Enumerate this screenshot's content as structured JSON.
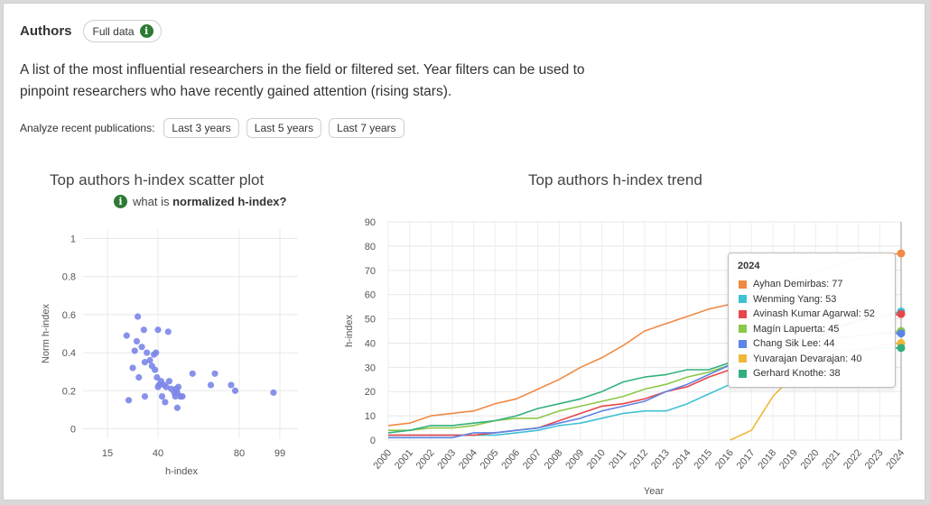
{
  "header": {
    "title": "Authors",
    "full_data_label": "Full data"
  },
  "description": "A list of the most influential researchers in the field or filtered set. Year filters can be used to pinpoint researchers who have recently gained attention (rising stars).",
  "filters": {
    "label": "Analyze recent publications:",
    "options": [
      "Last 3 years",
      "Last 5 years",
      "Last 7 years"
    ]
  },
  "scatter_hint": {
    "prefix": "what is ",
    "bold": "normalized h-index?"
  },
  "chart_data": [
    {
      "type": "scatter",
      "title": "Top authors h-index scatter plot",
      "xlabel": "h-index",
      "ylabel": "Norm h-index",
      "x_ticks": [
        15,
        40,
        80,
        99
      ],
      "y_ticks": [
        0,
        0.2,
        0.4,
        0.6,
        0.8,
        1
      ],
      "ylim": [
        -0.05,
        1.05
      ],
      "color": "#7b86e8",
      "points": [
        [
          24.5,
          0.49
        ],
        [
          25.5,
          0.15
        ],
        [
          27.5,
          0.32
        ],
        [
          28.5,
          0.41
        ],
        [
          29.5,
          0.46
        ],
        [
          30,
          0.59
        ],
        [
          30.5,
          0.27
        ],
        [
          32,
          0.43
        ],
        [
          33,
          0.52
        ],
        [
          33.5,
          0.35
        ],
        [
          33.5,
          0.17
        ],
        [
          34.5,
          0.4
        ],
        [
          36,
          0.36
        ],
        [
          37,
          0.33
        ],
        [
          38,
          0.39
        ],
        [
          38.5,
          0.31
        ],
        [
          39,
          0.4
        ],
        [
          39.5,
          0.27
        ],
        [
          40,
          0.52
        ],
        [
          40,
          0.22
        ],
        [
          40.5,
          0.23
        ],
        [
          41.5,
          0.25
        ],
        [
          42,
          0.17
        ],
        [
          43,
          0.23
        ],
        [
          43.5,
          0.14
        ],
        [
          44,
          0.22
        ],
        [
          45,
          0.51
        ],
        [
          45.5,
          0.25
        ],
        [
          46.5,
          0.21
        ],
        [
          48,
          0.19
        ],
        [
          48.5,
          0.17
        ],
        [
          49,
          0.21
        ],
        [
          49.5,
          0.19
        ],
        [
          49.5,
          0.11
        ],
        [
          50,
          0.22
        ],
        [
          51,
          0.17
        ],
        [
          52,
          0.17
        ],
        [
          57,
          0.29
        ],
        [
          66,
          0.23
        ],
        [
          68,
          0.29
        ],
        [
          76,
          0.23
        ],
        [
          78,
          0.2
        ],
        [
          96,
          0.19
        ]
      ]
    },
    {
      "type": "line",
      "title": "Top authors h-index trend",
      "xlabel": "Year",
      "ylabel": "h-index",
      "ylim": [
        0,
        90
      ],
      "y_ticks": [
        0,
        10,
        20,
        30,
        40,
        50,
        60,
        70,
        80,
        90
      ],
      "x": [
        "2000",
        "2001",
        "2002",
        "2003",
        "2004",
        "2005",
        "2006",
        "2007",
        "2008",
        "2009",
        "2010",
        "2011",
        "2012",
        "2013",
        "2014",
        "2015",
        "2016",
        "2017",
        "2018",
        "2019",
        "2020",
        "2021",
        "2022",
        "2023",
        "2024"
      ],
      "series": [
        {
          "name": "Ayhan Demirbas",
          "color": "#f08a44",
          "values": [
            6,
            7,
            10,
            11,
            12,
            15,
            17,
            21,
            25,
            30,
            34,
            39,
            45,
            48,
            51,
            54,
            56,
            60,
            63,
            66,
            69,
            72,
            75,
            76,
            77
          ]
        },
        {
          "name": "Wenming Yang",
          "color": "#3fc1d6",
          "values": [
            2,
            2,
            2,
            2,
            2,
            2,
            3,
            4,
            6,
            7,
            9,
            11,
            12,
            12,
            15,
            19,
            23,
            28,
            33,
            38,
            42,
            46,
            49,
            51,
            53
          ]
        },
        {
          "name": "Avinash Kumar Agarwal",
          "color": "#e8474b",
          "values": [
            2,
            2,
            2,
            2,
            2,
            3,
            4,
            5,
            8,
            11,
            14,
            15,
            17,
            20,
            22,
            26,
            29,
            33,
            37,
            41,
            44,
            47,
            49,
            51,
            52
          ]
        },
        {
          "name": "Magín Lapuerta",
          "color": "#8bc84a",
          "values": [
            4,
            4,
            5,
            5,
            6,
            8,
            9,
            9,
            12,
            14,
            16,
            18,
            21,
            23,
            26,
            28,
            31,
            34,
            37,
            39,
            41,
            42,
            43,
            44,
            45
          ]
        },
        {
          "name": "Chang Sik Lee",
          "color": "#5b85e8",
          "values": [
            1,
            1,
            1,
            1,
            3,
            3,
            4,
            5,
            7,
            9,
            12,
            14,
            16,
            20,
            23,
            27,
            31,
            35,
            38,
            40,
            41,
            42,
            43,
            44,
            44
          ]
        },
        {
          "name": "Yuvarajan Devarajan",
          "color": "#f0b73a",
          "values": [
            null,
            null,
            null,
            null,
            null,
            null,
            null,
            null,
            null,
            null,
            null,
            null,
            null,
            null,
            null,
            null,
            0,
            4,
            18,
            27,
            32,
            35,
            37,
            39,
            40
          ]
        },
        {
          "name": "Gerhard Knothe",
          "color": "#32b07c",
          "values": [
            3,
            4,
            6,
            6,
            7,
            8,
            10,
            13,
            15,
            17,
            20,
            24,
            26,
            27,
            29,
            29,
            32,
            34,
            35,
            36,
            36,
            37,
            37,
            38,
            38
          ]
        }
      ],
      "tooltip": {
        "title": "2024",
        "rows": [
          "Ayhan Demirbas: 77",
          "Wenming Yang: 53",
          "Avinash Kumar Agarwal: 52",
          "Magín Lapuerta: 45",
          "Chang Sik Lee: 44",
          "Yuvarajan Devarajan: 40",
          "Gerhard Knothe: 38"
        ]
      }
    }
  ]
}
